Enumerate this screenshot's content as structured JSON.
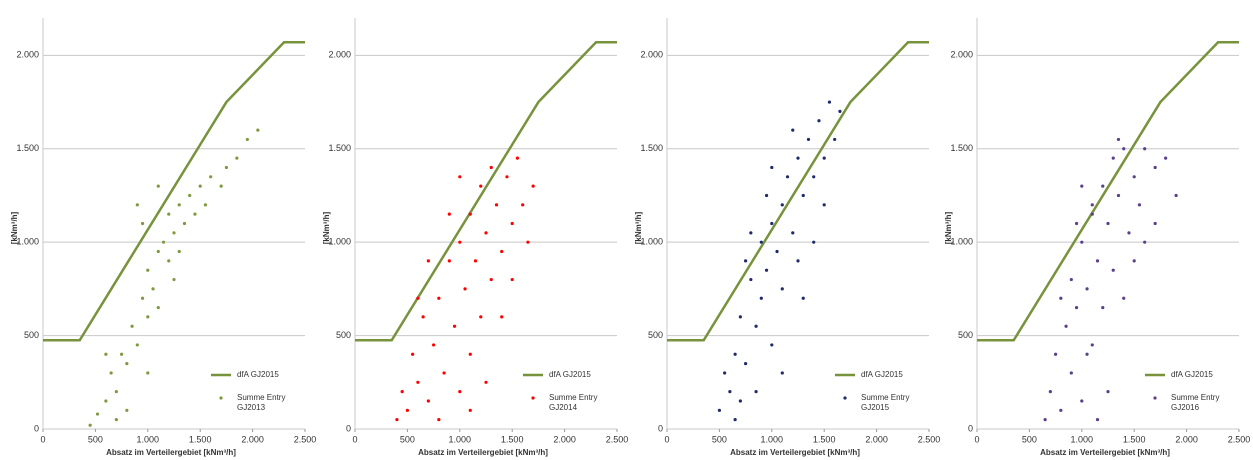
{
  "chart_data": [
    {
      "type": "scatter",
      "xlabel": "Absatz im Verteilergebiet [kNm³/h]",
      "ylabel": "[kNm³/h]",
      "xlim": [
        0,
        2500
      ],
      "ylim": [
        0,
        2200
      ],
      "xticks": [
        0,
        500,
        {
          "value": 1000,
          "label": "1.000"
        },
        {
          "value": 1500,
          "label": "1.500"
        },
        {
          "value": 2000,
          "label": "2.000"
        },
        {
          "value": 2500,
          "label": "2.500"
        }
      ],
      "yticks": [
        0,
        500,
        {
          "value": 1000,
          "label": "1.000"
        },
        {
          "value": 1500,
          "label": "1.500"
        },
        {
          "value": 2000,
          "label": "2.000"
        }
      ],
      "grid": true,
      "series": [
        {
          "name": "dfA GJ2015",
          "type": "line",
          "color": "#77933c",
          "x": [
            0,
            350,
            1750,
            2300,
            2500
          ],
          "values": [
            475,
            475,
            1750,
            2070,
            2070
          ]
        },
        {
          "name": "Summe Entry GJ2013",
          "type": "scatter",
          "color": "#7f9a3e",
          "x": [
            450,
            520,
            600,
            650,
            700,
            750,
            800,
            850,
            900,
            950,
            1000,
            1000,
            1050,
            1100,
            1100,
            1150,
            1200,
            1200,
            1250,
            1300,
            1300,
            1350,
            1400,
            1450,
            1500,
            1550,
            1600,
            1700,
            1750,
            1850,
            1950,
            2050,
            900,
            950,
            800,
            700,
            1100,
            600,
            1000,
            1250
          ],
          "values": [
            20,
            80,
            150,
            300,
            200,
            400,
            350,
            550,
            450,
            700,
            600,
            850,
            750,
            950,
            650,
            1000,
            900,
            1150,
            1050,
            1200,
            950,
            1100,
            1250,
            1150,
            1300,
            1200,
            1350,
            1300,
            1400,
            1450,
            1550,
            1600,
            1200,
            1100,
            100,
            50,
            1300,
            400,
            300,
            800
          ]
        }
      ]
    },
    {
      "type": "scatter",
      "xlabel": "Absatz im Verteilergebiet [kNm³/h]",
      "ylabel": "[kNm³/h]",
      "xlim": [
        0,
        2500
      ],
      "ylim": [
        0,
        2200
      ],
      "xticks": [
        0,
        500,
        {
          "value": 1000,
          "label": "1.000"
        },
        {
          "value": 1500,
          "label": "1.500"
        },
        {
          "value": 2000,
          "label": "2.000"
        },
        {
          "value": 2500,
          "label": "2.500"
        }
      ],
      "yticks": [
        0,
        500,
        {
          "value": 1000,
          "label": "1.000"
        },
        {
          "value": 1500,
          "label": "1.500"
        },
        {
          "value": 2000,
          "label": "2.000"
        }
      ],
      "grid": true,
      "series": [
        {
          "name": "dfA GJ2015",
          "type": "line",
          "color": "#77933c",
          "x": [
            0,
            350,
            1750,
            2300,
            2500
          ],
          "values": [
            475,
            475,
            1750,
            2070,
            2070
          ]
        },
        {
          "name": "Summe Entry GJ2014",
          "type": "scatter",
          "color": "#ff0000",
          "x": [
            400,
            450,
            500,
            550,
            600,
            650,
            700,
            750,
            800,
            850,
            900,
            950,
            1000,
            1000,
            1050,
            1100,
            1100,
            1150,
            1200,
            1200,
            1250,
            1300,
            1300,
            1350,
            1400,
            1450,
            1500,
            1550,
            1600,
            1650,
            1700,
            1000,
            1100,
            800,
            900,
            1400,
            600,
            1250,
            1500,
            700
          ],
          "values": [
            50,
            200,
            100,
            400,
            250,
            600,
            150,
            450,
            700,
            300,
            900,
            550,
            200,
            1000,
            750,
            1150,
            400,
            900,
            1300,
            600,
            1050,
            800,
            1400,
            1200,
            950,
            1350,
            1100,
            1450,
            1200,
            1000,
            1300,
            1350,
            100,
            50,
            1150,
            600,
            700,
            250,
            800,
            900
          ]
        }
      ]
    },
    {
      "type": "scatter",
      "xlabel": "Absatz im Verteilergebiet [kNm³/h]",
      "ylabel": "[kNm³/h]",
      "xlim": [
        0,
        2500
      ],
      "ylim": [
        0,
        2200
      ],
      "xticks": [
        0,
        500,
        {
          "value": 1000,
          "label": "1.000"
        },
        {
          "value": 1500,
          "label": "1.500"
        },
        {
          "value": 2000,
          "label": "2.000"
        },
        {
          "value": 2500,
          "label": "2.500"
        }
      ],
      "yticks": [
        0,
        500,
        {
          "value": 1000,
          "label": "1.000"
        },
        {
          "value": 1500,
          "label": "1.500"
        },
        {
          "value": 2000,
          "label": "2.000"
        }
      ],
      "grid": true,
      "series": [
        {
          "name": "dfA GJ2015",
          "type": "line",
          "color": "#77933c",
          "x": [
            0,
            350,
            1750,
            2300,
            2500
          ],
          "values": [
            475,
            475,
            1750,
            2070,
            2070
          ]
        },
        {
          "name": "Summe Entry GJ2015",
          "type": "scatter",
          "color": "#1f2a6b",
          "x": [
            500,
            550,
            600,
            650,
            700,
            700,
            750,
            800,
            850,
            900,
            900,
            950,
            1000,
            1000,
            1050,
            1100,
            1100,
            1150,
            1200,
            1250,
            1250,
            1300,
            1350,
            1400,
            1450,
            1500,
            1550,
            1600,
            1000,
            800,
            950,
            1200,
            1300,
            1400,
            650,
            750,
            1100,
            1500,
            850,
            1650
          ],
          "values": [
            100,
            300,
            200,
            400,
            150,
            600,
            350,
            800,
            550,
            1000,
            700,
            850,
            1100,
            450,
            950,
            1200,
            750,
            1350,
            1050,
            1450,
            900,
            1250,
            1550,
            1350,
            1650,
            1450,
            1750,
            1550,
            1400,
            1050,
            1250,
            1600,
            700,
            1000,
            50,
            900,
            300,
            1200,
            200,
            1700
          ]
        }
      ]
    },
    {
      "type": "scatter",
      "xlabel": "Absatz im Verteilergebiet [kNm³/h]",
      "ylabel": "[kNm³/h]",
      "xlim": [
        0,
        2500
      ],
      "ylim": [
        0,
        2200
      ],
      "xticks": [
        0,
        500,
        {
          "value": 1000,
          "label": "1.000"
        },
        {
          "value": 1500,
          "label": "1.500"
        },
        {
          "value": 2000,
          "label": "2.000"
        },
        {
          "value": 2500,
          "label": "2.500"
        }
      ],
      "yticks": [
        0,
        500,
        {
          "value": 1000,
          "label": "1.000"
        },
        {
          "value": 1500,
          "label": "1.500"
        },
        {
          "value": 2000,
          "label": "2.000"
        }
      ],
      "grid": true,
      "series": [
        {
          "name": "dfA GJ2015",
          "type": "line",
          "color": "#77933c",
          "x": [
            0,
            350,
            1750,
            2300,
            2500
          ],
          "values": [
            475,
            475,
            1750,
            2070,
            2070
          ]
        },
        {
          "name": "Summe Entry GJ2016",
          "type": "scatter",
          "color": "#5b3f8a",
          "x": [
            650,
            700,
            750,
            800,
            850,
            900,
            900,
            950,
            1000,
            1000,
            1050,
            1100,
            1100,
            1150,
            1200,
            1200,
            1250,
            1300,
            1300,
            1350,
            1400,
            1450,
            1500,
            1550,
            1600,
            1700,
            1800,
            1900,
            1100,
            1000,
            950,
            1250,
            1400,
            1150,
            1600,
            800,
            1350,
            1700,
            1050,
            1500
          ],
          "values": [
            50,
            200,
            400,
            100,
            550,
            300,
            800,
            650,
            150,
            1000,
            750,
            1150,
            450,
            900,
            1300,
            650,
            1100,
            1450,
            850,
            1250,
            1500,
            1050,
            1350,
            1200,
            1500,
            1400,
            1450,
            1250,
            1200,
            1300,
            1100,
            200,
            700,
            50,
            1000,
            700,
            1550,
            1100,
            400,
            900
          ]
        }
      ]
    }
  ]
}
